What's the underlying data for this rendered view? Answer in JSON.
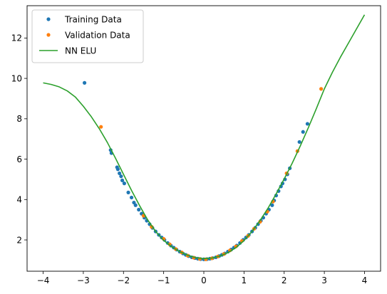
{
  "chart_data": {
    "type": "scatter",
    "title": "",
    "xlabel": "",
    "ylabel": "",
    "xlim": [
      -4.4,
      4.4
    ],
    "ylim": [
      0.45,
      13.6
    ],
    "xticks": [
      -4,
      -3,
      -2,
      -1,
      0,
      1,
      2,
      3,
      4
    ],
    "yticks": [
      2,
      4,
      6,
      8,
      10,
      12
    ],
    "grid": false,
    "legend_position": "top-left",
    "series": [
      {
        "name": "Training Data",
        "kind": "scatter",
        "color": "#1f77b4",
        "points": [
          [
            -2.97,
            9.78
          ],
          [
            -2.32,
            6.45
          ],
          [
            -2.3,
            6.3
          ],
          [
            -2.16,
            5.6
          ],
          [
            -2.14,
            5.5
          ],
          [
            -2.1,
            5.3
          ],
          [
            -2.06,
            5.15
          ],
          [
            -2.03,
            4.95
          ],
          [
            -1.98,
            4.8
          ],
          [
            -1.88,
            4.35
          ],
          [
            -1.8,
            4.1
          ],
          [
            -1.74,
            3.85
          ],
          [
            -1.7,
            3.72
          ],
          [
            -1.62,
            3.5
          ],
          [
            -1.55,
            3.3
          ],
          [
            -1.48,
            3.1
          ],
          [
            -1.42,
            2.95
          ],
          [
            -1.35,
            2.78
          ],
          [
            -1.28,
            2.6
          ],
          [
            -1.2,
            2.42
          ],
          [
            -1.12,
            2.25
          ],
          [
            -1.05,
            2.12
          ],
          [
            -0.98,
            2.0
          ],
          [
            -0.9,
            1.85
          ],
          [
            -0.82,
            1.72
          ],
          [
            -0.75,
            1.62
          ],
          [
            -0.68,
            1.52
          ],
          [
            -0.6,
            1.42
          ],
          [
            -0.52,
            1.33
          ],
          [
            -0.45,
            1.26
          ],
          [
            -0.38,
            1.2
          ],
          [
            -0.3,
            1.14
          ],
          [
            -0.22,
            1.1
          ],
          [
            -0.15,
            1.07
          ],
          [
            -0.08,
            1.05
          ],
          [
            0.0,
            1.04
          ],
          [
            0.08,
            1.05
          ],
          [
            0.15,
            1.07
          ],
          [
            0.22,
            1.1
          ],
          [
            0.3,
            1.14
          ],
          [
            0.38,
            1.2
          ],
          [
            0.45,
            1.26
          ],
          [
            0.52,
            1.33
          ],
          [
            0.6,
            1.42
          ],
          [
            0.68,
            1.52
          ],
          [
            0.75,
            1.62
          ],
          [
            0.82,
            1.72
          ],
          [
            0.9,
            1.85
          ],
          [
            0.98,
            2.0
          ],
          [
            1.05,
            2.12
          ],
          [
            1.12,
            2.25
          ],
          [
            1.2,
            2.42
          ],
          [
            1.28,
            2.6
          ],
          [
            1.35,
            2.78
          ],
          [
            1.42,
            2.95
          ],
          [
            1.48,
            3.1
          ],
          [
            1.55,
            3.3
          ],
          [
            1.62,
            3.5
          ],
          [
            1.7,
            3.72
          ],
          [
            1.75,
            3.95
          ],
          [
            1.8,
            4.2
          ],
          [
            1.86,
            4.42
          ],
          [
            1.92,
            4.65
          ],
          [
            1.96,
            4.8
          ],
          [
            2.02,
            5.0
          ],
          [
            2.08,
            5.25
          ],
          [
            2.14,
            5.55
          ],
          [
            2.38,
            6.85
          ],
          [
            2.47,
            7.35
          ],
          [
            2.58,
            7.75
          ]
        ]
      },
      {
        "name": "Validation Data",
        "kind": "scatter",
        "color": "#ff7f0e",
        "points": [
          [
            -2.56,
            7.6
          ],
          [
            -1.5,
            3.2
          ],
          [
            -1.3,
            2.65
          ],
          [
            -1.0,
            2.05
          ],
          [
            -0.85,
            1.78
          ],
          [
            -0.7,
            1.55
          ],
          [
            -0.55,
            1.38
          ],
          [
            -0.4,
            1.22
          ],
          [
            -0.25,
            1.12
          ],
          [
            -0.1,
            1.06
          ],
          [
            0.05,
            1.04
          ],
          [
            0.2,
            1.09
          ],
          [
            0.35,
            1.18
          ],
          [
            0.5,
            1.3
          ],
          [
            0.65,
            1.48
          ],
          [
            0.8,
            1.68
          ],
          [
            0.95,
            1.95
          ],
          [
            1.1,
            2.2
          ],
          [
            1.25,
            2.55
          ],
          [
            1.4,
            2.9
          ],
          [
            1.58,
            3.4
          ],
          [
            1.72,
            3.9
          ],
          [
            2.06,
            5.3
          ],
          [
            2.33,
            6.4
          ],
          [
            2.92,
            9.48
          ]
        ]
      },
      {
        "name": "NN ELU",
        "kind": "line",
        "color": "#2ca02c",
        "points": [
          [
            -4.0,
            9.78
          ],
          [
            -3.8,
            9.7
          ],
          [
            -3.6,
            9.58
          ],
          [
            -3.4,
            9.38
          ],
          [
            -3.2,
            9.08
          ],
          [
            -3.0,
            8.62
          ],
          [
            -2.8,
            8.1
          ],
          [
            -2.6,
            7.5
          ],
          [
            -2.4,
            6.82
          ],
          [
            -2.2,
            6.05
          ],
          [
            -2.0,
            5.25
          ],
          [
            -1.8,
            4.45
          ],
          [
            -1.6,
            3.7
          ],
          [
            -1.4,
            3.0
          ],
          [
            -1.2,
            2.42
          ],
          [
            -1.0,
            1.98
          ],
          [
            -0.8,
            1.66
          ],
          [
            -0.6,
            1.42
          ],
          [
            -0.4,
            1.24
          ],
          [
            -0.2,
            1.12
          ],
          [
            0.0,
            1.07
          ],
          [
            0.2,
            1.1
          ],
          [
            0.4,
            1.2
          ],
          [
            0.6,
            1.37
          ],
          [
            0.8,
            1.62
          ],
          [
            1.0,
            1.97
          ],
          [
            1.2,
            2.42
          ],
          [
            1.4,
            2.96
          ],
          [
            1.6,
            3.58
          ],
          [
            1.8,
            4.28
          ],
          [
            2.0,
            5.02
          ],
          [
            2.2,
            5.8
          ],
          [
            2.4,
            6.65
          ],
          [
            2.6,
            7.55
          ],
          [
            2.8,
            8.5
          ],
          [
            3.0,
            9.48
          ],
          [
            3.2,
            10.3
          ],
          [
            3.4,
            11.05
          ],
          [
            3.6,
            11.75
          ],
          [
            3.8,
            12.45
          ],
          [
            4.0,
            13.15
          ]
        ]
      }
    ]
  }
}
